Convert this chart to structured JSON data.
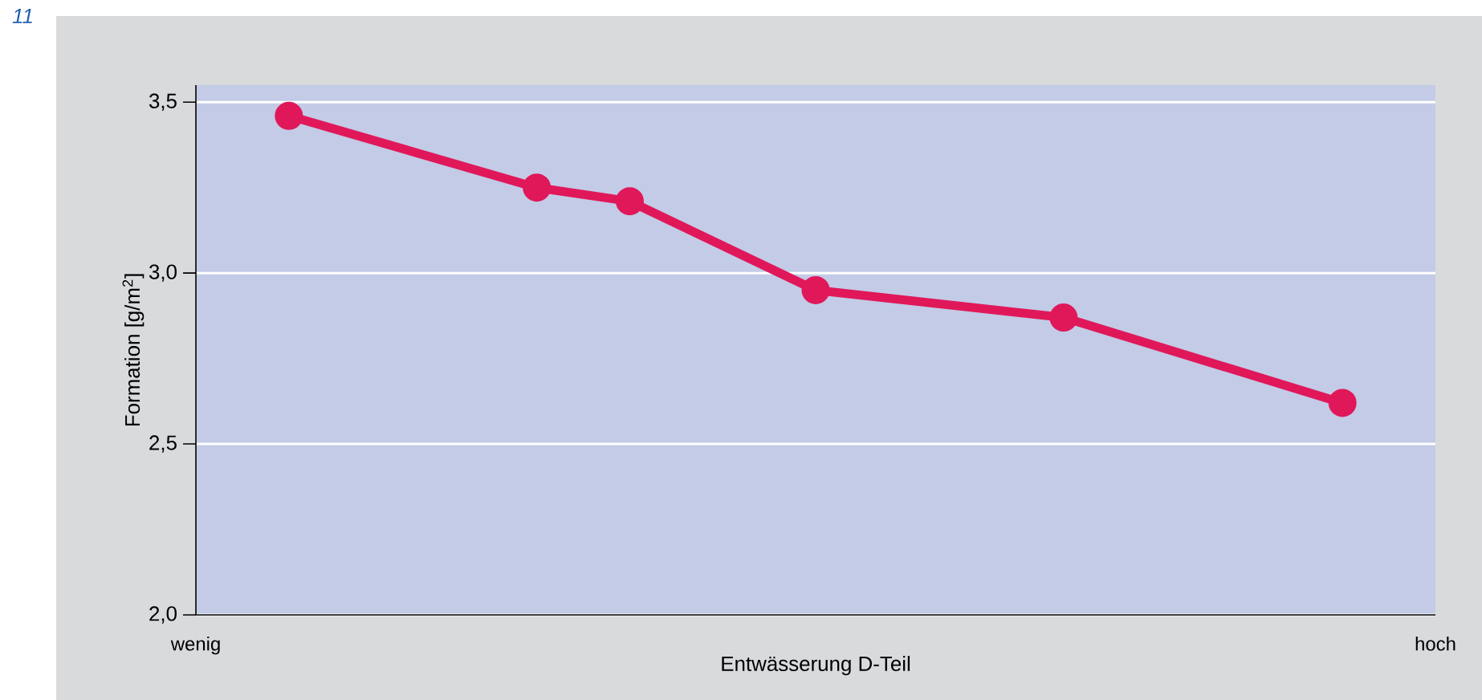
{
  "chart_data": {
    "type": "line",
    "xlabel": "Entwässerung D-Teil",
    "ylabel": "Formation [g/m$^{2}$]",
    "annotations": [
      "11"
    ],
    "categories": [
      "wenig",
      null,
      null,
      null,
      null,
      null,
      null,
      null,
      null,
      null,
      null,
      null,
      null,
      null,
      null,
      null,
      null,
      null,
      null,
      null,
      null,
      null,
      null,
      null,
      null,
      null,
      null,
      null,
      null,
      null,
      null,
      null,
      null,
      null,
      null,
      null,
      null,
      null,
      null,
      null,
      "hoch"
    ],
    "series": [
      {
        "color": "#e0185a",
        "values": [
          null,
          null,
          null,
          3.46,
          null,
          null,
          null,
          null,
          null,
          null,
          null,
          3.25,
          null,
          null,
          3.21,
          null,
          null,
          null,
          null,
          null,
          2.95,
          null,
          null,
          null,
          null,
          null,
          null,
          null,
          2.87,
          null,
          null,
          null,
          null,
          null,
          null,
          null,
          null,
          2.62,
          null,
          null,
          null
        ]
      }
    ],
    "ylim": [
      2.0,
      3.55
    ],
    "yticks": [
      {
        "value": 2.0,
        "label": "2,0"
      },
      {
        "value": 2.5,
        "label": "2,5"
      },
      {
        "value": 3.0,
        "label": "3,0"
      },
      {
        "value": 3.5,
        "label": "3,5"
      }
    ],
    "grid": "y",
    "marker": "circle",
    "line_style": "solid"
  }
}
